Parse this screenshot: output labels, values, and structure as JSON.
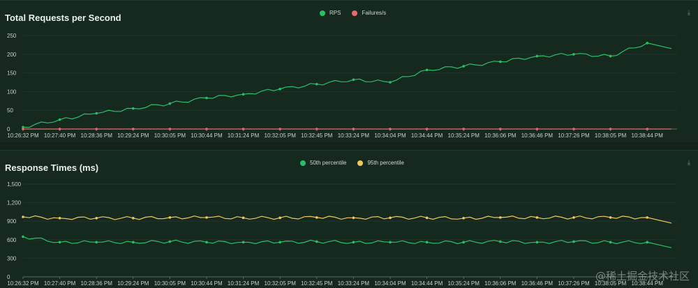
{
  "watermark": "@稀土掘金技术社区",
  "chart_data": [
    {
      "type": "line",
      "title": "Total Requests per Second",
      "x": [
        "10:26:32 PM",
        "10:27:40 PM",
        "10:28:36 PM",
        "10:29:24 PM",
        "10:30:05 PM",
        "10:30:44 PM",
        "10:31:24 PM",
        "10:32:05 PM",
        "10:32:45 PM",
        "10:33:24 PM",
        "10:34:04 PM",
        "10:34:44 PM",
        "10:35:24 PM",
        "10:36:06 PM",
        "10:36:46 PM",
        "10:37:26 PM",
        "10:38:05 PM",
        "10:38:44 PM"
      ],
      "ylim": [
        0,
        250
      ],
      "yticks": [
        "0",
        "50",
        "100",
        "150",
        "200",
        "250"
      ],
      "series": [
        {
          "name": "RPS",
          "color": "#27c068",
          "values": [
            5,
            25,
            42,
            55,
            68,
            83,
            93,
            107,
            120,
            132,
            125,
            158,
            168,
            180,
            195,
            200,
            195,
            230
          ]
        },
        {
          "name": "Failures/s",
          "color": "#e96b6b",
          "values": [
            0,
            0,
            0,
            0,
            0,
            0,
            0,
            0,
            0,
            0,
            0,
            0,
            0,
            0,
            0,
            0,
            0,
            0
          ]
        }
      ]
    },
    {
      "type": "line",
      "title": "Response Times (ms)",
      "x": [
        "10:26:32 PM",
        "10:27:40 PM",
        "10:28:36 PM",
        "10:29:24 PM",
        "10:30:05 PM",
        "10:30:44 PM",
        "10:31:24 PM",
        "10:32:05 PM",
        "10:32:45 PM",
        "10:33:24 PM",
        "10:34:04 PM",
        "10:34:44 PM",
        "10:35:24 PM",
        "10:36:06 PM",
        "10:36:46 PM",
        "10:37:26 PM",
        "10:38:05 PM",
        "10:38:44 PM"
      ],
      "ylim": [
        0,
        1500
      ],
      "yticks": [
        "0",
        "300",
        "600",
        "900",
        "1,200",
        "1,500"
      ],
      "series": [
        {
          "name": "50th percentile",
          "color": "#27c068",
          "values": [
            650,
            560,
            560,
            560,
            570,
            560,
            560,
            560,
            570,
            560,
            560,
            560,
            560,
            570,
            560,
            570,
            560,
            560
          ]
        },
        {
          "name": "95th percentile",
          "color": "#f0c75a",
          "values": [
            970,
            950,
            950,
            950,
            960,
            960,
            955,
            955,
            960,
            955,
            955,
            955,
            950,
            960,
            960,
            960,
            960,
            960
          ]
        }
      ]
    }
  ]
}
